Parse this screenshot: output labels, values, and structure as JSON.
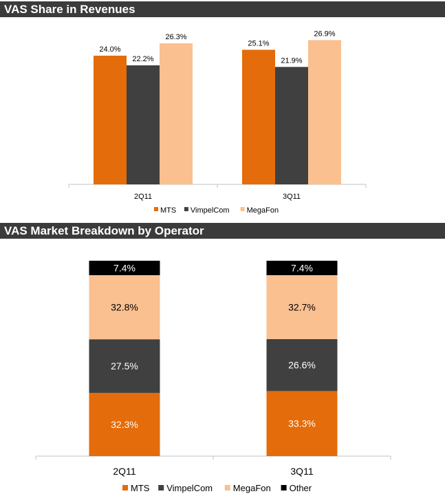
{
  "colors": {
    "MTS": "#e46c0a",
    "VimpelCom": "#404040",
    "MegaFon": "#fac090",
    "Other": "#000000"
  },
  "chart_data": [
    {
      "type": "bar",
      "title": "VAS Share in Revenues",
      "categories": [
        "2Q11",
        "3Q11"
      ],
      "series": [
        {
          "name": "MTS",
          "values": [
            24.0,
            25.1
          ],
          "labels": [
            "24.0%",
            "25.1%"
          ]
        },
        {
          "name": "VimpelCom",
          "values": [
            22.2,
            21.9
          ],
          "labels": [
            "22.2%",
            "21.9%"
          ]
        },
        {
          "name": "MegaFon",
          "values": [
            26.3,
            26.9
          ],
          "labels": [
            "26.3%",
            "26.9%"
          ]
        }
      ],
      "ylim": [
        0,
        30
      ],
      "legend_position": "bottom",
      "grid": false
    },
    {
      "type": "bar",
      "stacked": true,
      "title": "VAS Market Breakdown by Operator",
      "categories": [
        "2Q11",
        "3Q11"
      ],
      "series": [
        {
          "name": "MTS",
          "values": [
            32.3,
            33.3
          ],
          "labels": [
            "32.3%",
            "33.3%"
          ]
        },
        {
          "name": "VimpelCom",
          "values": [
            27.5,
            26.6
          ],
          "labels": [
            "27.5%",
            "26.6%"
          ]
        },
        {
          "name": "MegaFon",
          "values": [
            32.8,
            32.7
          ],
          "labels": [
            "32.8%",
            "32.7%"
          ]
        },
        {
          "name": "Other",
          "values": [
            7.4,
            7.4
          ],
          "labels": [
            "7.4%",
            "7.4%"
          ]
        }
      ],
      "ylim": [
        0,
        100
      ],
      "legend_position": "bottom",
      "grid": false
    }
  ]
}
